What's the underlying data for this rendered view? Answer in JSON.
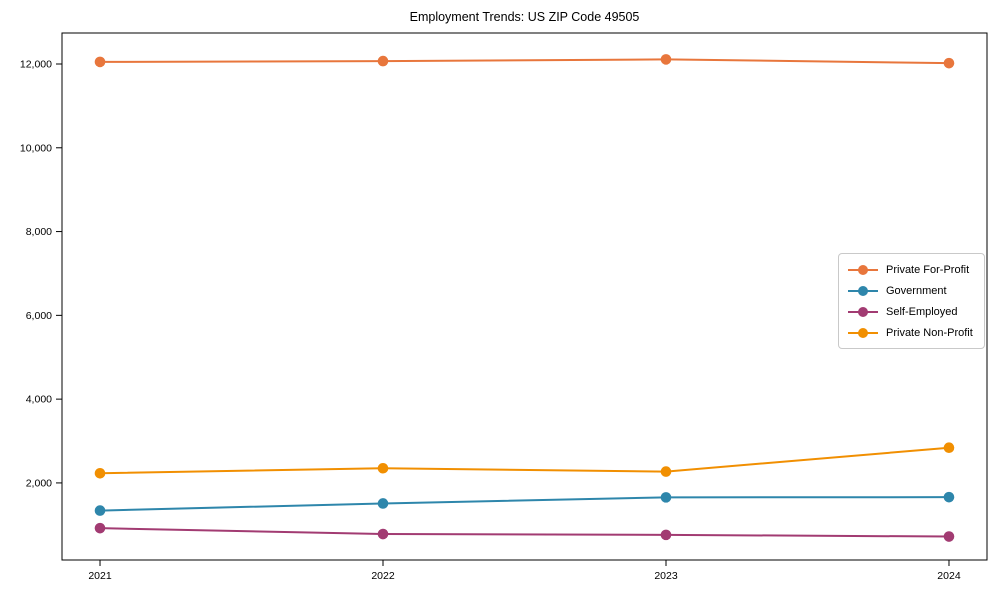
{
  "title": "Employment Trends: US ZIP Code 49505",
  "chart_data": {
    "type": "line",
    "title": "Employment Trends: US ZIP Code 49505",
    "x": [
      "2021",
      "2022",
      "2023",
      "2024"
    ],
    "series": [
      {
        "name": "Private For-Profit",
        "color": "#E8763C",
        "values": [
          12050,
          12070,
          12110,
          12020
        ]
      },
      {
        "name": "Government",
        "color": "#2E86AB",
        "values": [
          1340,
          1510,
          1655,
          1660
        ]
      },
      {
        "name": "Self-Employed",
        "color": "#A23B72",
        "values": [
          920,
          780,
          760,
          720
        ]
      },
      {
        "name": "Private Non-Profit",
        "color": "#F18F01",
        "values": [
          2230,
          2350,
          2270,
          2840
        ]
      }
    ],
    "yticks": [
      2000,
      4000,
      6000,
      8000,
      10000,
      12000
    ],
    "ylim": [
      160,
      12740
    ],
    "xlabel": "",
    "ylabel": "",
    "grid": false,
    "marker": "circle",
    "legend_position": "center-right"
  }
}
